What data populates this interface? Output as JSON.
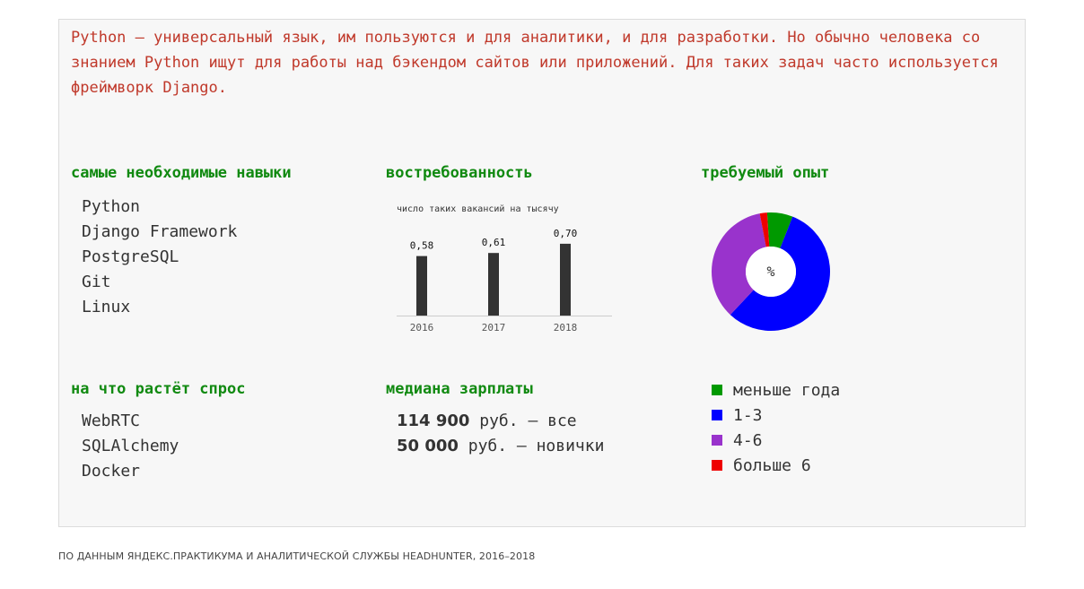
{
  "intro": "Python — универсальный язык, им пользуются и для аналитики, и для разработки. Но обычно человека со знанием Python ищут для работы над бэкендом сайтов или приложений. Для таких задач часто используется фреймворк Django.",
  "skills": {
    "title": "самые необходимые навыки",
    "items": [
      "Python",
      "Django Framework",
      "PostgreSQL",
      "Git",
      "Linux"
    ]
  },
  "demand": {
    "title": "востребованность"
  },
  "experience": {
    "title": "требуемый опыт",
    "center_label": "%"
  },
  "growing": {
    "title": "на что растёт спрос",
    "items": [
      "WebRTC",
      "SQLAlchemy",
      "Docker"
    ]
  },
  "salary": {
    "title": "медиана зарплаты",
    "rows": [
      {
        "amount": "114 900",
        "text": " руб. — все"
      },
      {
        "amount": "50 000",
        "text": " руб. — новички"
      }
    ]
  },
  "colors": {
    "intro": "#c0392b",
    "heading": "#118a11",
    "bar": "#333333",
    "less_than_year": "#009900",
    "one_three": "#0000ff",
    "four_six": "#9933cc",
    "more_six": "#ee0000"
  },
  "chart_data": [
    {
      "type": "bar",
      "subtitle": "число таких вакансий на тысячу",
      "categories": [
        "2016",
        "2017",
        "2018"
      ],
      "values": [
        0.58,
        0.61,
        0.7
      ],
      "value_labels": [
        "0,58",
        "0,61",
        "0,70"
      ],
      "ylim": [
        0,
        0.9
      ],
      "grid": false
    },
    {
      "type": "pie",
      "donut": true,
      "center_label": "%",
      "labels": [
        "меньше года",
        "1-3",
        "4-6",
        "больше 6"
      ],
      "values": [
        7,
        56,
        35,
        2
      ],
      "colors": [
        "#009900",
        "#0000ff",
        "#9933cc",
        "#ee0000"
      ],
      "legend": "bottom"
    }
  ],
  "footer": "ПО ДАННЫМ ЯНДЕКС.ПРАКТИКУМА И АНАЛИТИЧЕСКОЙ СЛУЖБЫ HEADHUNTER, 2016–2018"
}
